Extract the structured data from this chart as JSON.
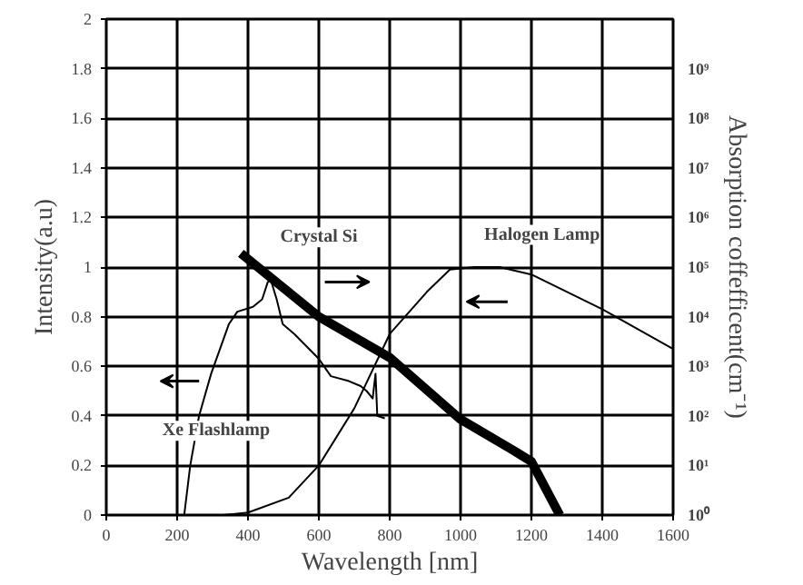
{
  "chart_data": {
    "type": "line",
    "xlabel": "Wavelength [nm]",
    "ylabel": "Intensity(a.u)",
    "y2label": "Absorption coffefficent(cm⁻¹)",
    "xlim": [
      0,
      1600
    ],
    "xticks": [
      0,
      200,
      400,
      600,
      800,
      1000,
      1200,
      1400,
      1600
    ],
    "ylim": [
      0,
      2
    ],
    "yticks": [
      0,
      0.2,
      0.4,
      0.6,
      0.8,
      1,
      1.2,
      1.4,
      1.6,
      1.8,
      2
    ],
    "y2lim": [
      1,
      10000000000
    ],
    "log": "y2",
    "y2ticks": [
      {
        "value": 1,
        "label": "10⁰"
      },
      {
        "value": 10,
        "label": "10¹"
      },
      {
        "value": 100,
        "label": "10²"
      },
      {
        "value": 1000,
        "label": "10³"
      },
      {
        "value": 10000,
        "label": "10⁴"
      },
      {
        "value": 100000,
        "label": "10⁵"
      },
      {
        "value": 1000000,
        "label": "10⁶"
      },
      {
        "value": 10000000,
        "label": "10⁷"
      },
      {
        "value": 100000000,
        "label": "10⁸"
      },
      {
        "value": 1000000000,
        "label": "10⁹"
      }
    ],
    "grid": true,
    "series": [
      {
        "color": "#000000",
        "x": [
          220,
          237,
          262,
          296,
          346,
          370,
          414,
          440,
          456,
          464,
          481,
          498,
          531,
          600,
          634,
          685,
          718,
          735,
          752,
          760,
          765,
          786
        ],
        "values": [
          0,
          0.2,
          0.4,
          0.57,
          0.77,
          0.82,
          0.84,
          0.87,
          0.94,
          0.95,
          0.87,
          0.77,
          0.73,
          0.63,
          0.56,
          0.54,
          0.52,
          0.5,
          0.47,
          0.57,
          0.4,
          0.39
        ]
      },
      {
        "color": "#000000",
        "x": [
          330,
          400,
          515,
          600,
          700,
          800,
          905,
          970,
          1040,
          1110,
          1200,
          1400,
          1600
        ],
        "values": [
          0,
          0.01,
          0.07,
          0.2,
          0.43,
          0.73,
          0.9,
          0.99,
          1.0,
          1.0,
          0.97,
          0.83,
          0.67
        ]
      },
      {
        "color": "#000000",
        "axis": "y2",
        "x": [
          380,
          600,
          800,
          1000,
          1150,
          1200,
          1280
        ],
        "values": [
          190000,
          10000,
          1500,
          85,
          20,
          12,
          1
        ]
      }
    ],
    "annotations": [
      "Crystal Si",
      "Halogen Lamp",
      "Xe Flashlamp"
    ]
  }
}
